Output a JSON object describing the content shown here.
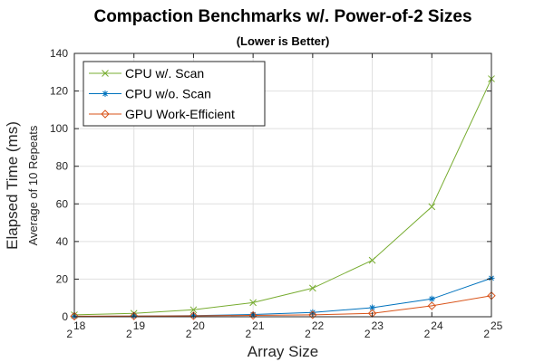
{
  "chart_data": {
    "type": "line",
    "title": "Compaction Benchmarks w/. Power-of-2 Sizes",
    "subtitle": "(Lower is Better)",
    "xlabel": "Array Size",
    "ylabel": "Elapsed Time (ms)",
    "ylabel_secondary": "Average of 10 Repeats",
    "x": [
      18,
      19,
      20,
      21,
      22,
      23,
      24,
      25
    ],
    "x_tick_base": "2",
    "x_tick_exponents": [
      "18",
      "19",
      "20",
      "21",
      "22",
      "23",
      "24",
      "25"
    ],
    "ylim": [
      0,
      140
    ],
    "y_ticks": [
      0,
      20,
      40,
      60,
      80,
      100,
      120,
      140
    ],
    "grid": true,
    "legend_position": "top-left",
    "series": [
      {
        "name": "CPU w/. Scan",
        "color": "#77ac30",
        "marker": "x",
        "values": [
          1.0,
          1.8,
          3.7,
          7.5,
          15.2,
          30.0,
          58.5,
          126.5
        ]
      },
      {
        "name": "CPU w/o. Scan",
        "color": "#0072bd",
        "marker": "asterisk",
        "values": [
          0.2,
          0.4,
          0.6,
          1.2,
          2.3,
          4.8,
          9.5,
          20.5
        ]
      },
      {
        "name": "GPU Work-Efficient",
        "color": "#d95319",
        "marker": "diamond",
        "values": [
          0.3,
          0.4,
          0.5,
          0.7,
          1.0,
          1.8,
          5.8,
          11.2
        ]
      }
    ]
  }
}
